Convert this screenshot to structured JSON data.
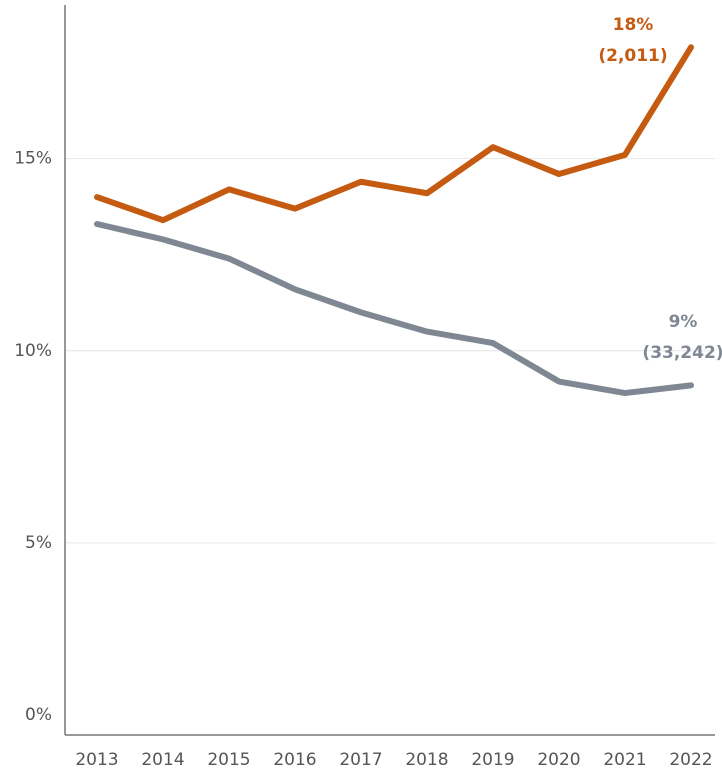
{
  "chart_data": {
    "type": "line",
    "categories": [
      "2013",
      "2014",
      "2015",
      "2016",
      "2017",
      "2018",
      "2019",
      "2020",
      "2021",
      "2022"
    ],
    "series": [
      {
        "color": "#c55a11",
        "values": [
          14.0,
          13.4,
          14.2,
          13.7,
          14.4,
          14.1,
          15.3,
          14.6,
          15.1,
          17.9
        ],
        "end_label": [
          "18%",
          "(2,011)"
        ]
      },
      {
        "color": "#7f8793",
        "values": [
          13.3,
          12.9,
          12.4,
          11.6,
          11.0,
          10.5,
          10.2,
          9.2,
          8.9,
          9.1
        ],
        "end_label": [
          "9%",
          "(33,242)"
        ]
      }
    ],
    "ylim": [
      0,
      19
    ],
    "yticks": [
      {
        "value": 0,
        "label": "0%"
      },
      {
        "value": 5,
        "label": "5%"
      },
      {
        "value": 10,
        "label": "10%"
      },
      {
        "value": 15,
        "label": "15%"
      }
    ],
    "grid": true
  }
}
